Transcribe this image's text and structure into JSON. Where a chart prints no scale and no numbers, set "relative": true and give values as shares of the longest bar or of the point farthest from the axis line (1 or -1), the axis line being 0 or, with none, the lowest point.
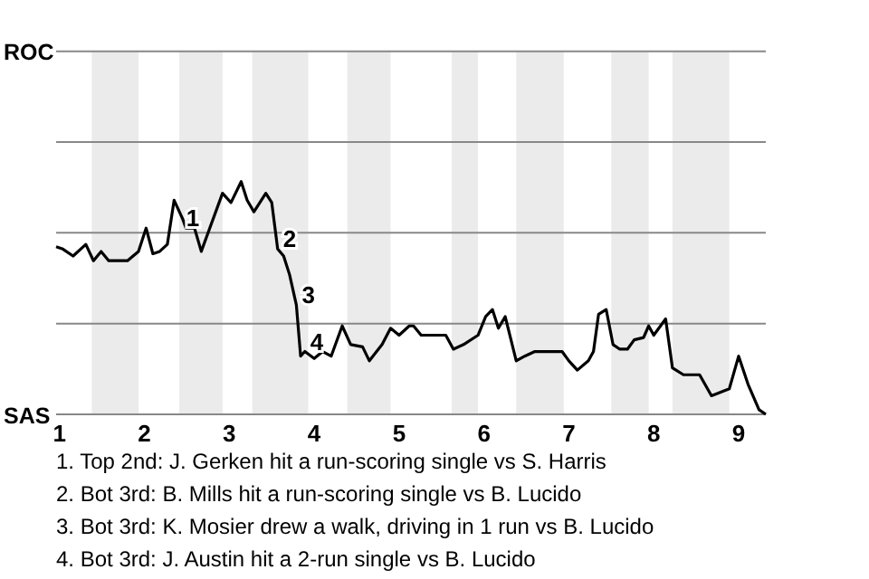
{
  "chart_data": {
    "type": "line",
    "relative": true,
    "x": [
      0.96,
      1.04,
      1.16,
      1.31,
      1.4,
      1.49,
      1.58,
      1.8,
      1.93,
      2.02,
      2.1,
      2.18,
      2.27,
      2.35,
      2.45,
      2.49,
      2.59,
      2.67,
      2.92,
      3.02,
      3.14,
      3.21,
      3.29,
      3.43,
      3.5,
      3.57,
      3.64,
      3.71,
      3.79,
      3.84,
      3.89,
      4.0,
      4.1,
      4.2,
      4.33,
      4.43,
      4.57,
      4.65,
      4.8,
      4.9,
      5.0,
      5.12,
      5.17,
      5.26,
      5.55,
      5.64,
      5.76,
      5.93,
      6.02,
      6.1,
      6.17,
      6.25,
      6.38,
      6.48,
      6.6,
      6.92,
      7.0,
      7.1,
      7.23,
      7.29,
      7.35,
      7.44,
      7.52,
      7.6,
      7.69,
      7.77,
      7.88,
      7.94,
      8.0,
      8.14,
      8.22,
      8.35,
      8.54,
      8.68,
      8.89,
      9.0,
      9.11,
      9.24,
      9.32
    ],
    "series": [
      {
        "color": "#000000",
        "values": [
          0.72,
          0.71,
          0.68,
          0.73,
          0.66,
          0.7,
          0.66,
          0.66,
          0.7,
          0.8,
          0.69,
          0.7,
          0.73,
          0.92,
          0.84,
          0.8,
          0.8,
          0.7,
          0.95,
          0.91,
          1,
          0.92,
          0.87,
          0.95,
          0.91,
          0.71,
          0.68,
          0.6,
          0.47,
          0.25,
          0.27,
          0.24,
          0.27,
          0.25,
          0.38,
          0.3,
          0.29,
          0.23,
          0.3,
          0.37,
          0.34,
          0.38,
          0.38,
          0.34,
          0.34,
          0.28,
          0.3,
          0.34,
          0.42,
          0.45,
          0.37,
          0.42,
          0.23,
          0.25,
          0.27,
          0.27,
          0.23,
          0.19,
          0.23,
          0.27,
          0.43,
          0.45,
          0.3,
          0.28,
          0.28,
          0.32,
          0.33,
          0.38,
          0.34,
          0.41,
          0.2,
          0.17,
          0.17,
          0.08,
          0.11,
          0.25,
          0.13,
          0.02,
          0
        ]
      }
    ],
    "xlim": [
      0.96,
      9.32
    ],
    "xticks": [
      1,
      2,
      3,
      4,
      5,
      6,
      7,
      8,
      9
    ],
    "marker": "none",
    "line_style": "solid",
    "ref_lines": [
      {
        "axis": "y",
        "value": 0.39,
        "color": "#888888"
      },
      {
        "axis": "y",
        "value": 0.78,
        "color": "#888888"
      },
      {
        "axis": "y",
        "value": 1.17,
        "color": "#888888"
      },
      {
        "axis": "y",
        "value": 1.56,
        "color": "#888888"
      }
    ],
    "bands": [
      {
        "axis": "x",
        "from": 1.38,
        "to": 1.93,
        "color": "#ebebeb"
      },
      {
        "axis": "x",
        "from": 2.41,
        "to": 2.92,
        "color": "#ebebeb"
      },
      {
        "axis": "x",
        "from": 3.27,
        "to": 3.93,
        "color": "#ebebeb"
      },
      {
        "axis": "x",
        "from": 4.39,
        "to": 4.9,
        "color": "#ebebeb"
      },
      {
        "axis": "x",
        "from": 5.62,
        "to": 5.93,
        "color": "#ebebeb"
      },
      {
        "axis": "x",
        "from": 6.38,
        "to": 6.94,
        "color": "#ebebeb"
      },
      {
        "axis": "x",
        "from": 7.5,
        "to": 7.94,
        "color": "#ebebeb"
      },
      {
        "axis": "x",
        "from": 8.22,
        "to": 8.89,
        "color": "#ebebeb"
      }
    ],
    "annotations": [
      "ROC",
      "SAS",
      {
        "text": "1",
        "x": 2.43,
        "y": 0.8
      },
      {
        "text": "2",
        "x": 3.57,
        "y": 0.71
      },
      {
        "text": "3",
        "x": 3.79,
        "y": 0.47
      },
      {
        "text": "4",
        "x": 3.89,
        "y": 0.27
      },
      "1. Top 2nd: J. Gerken hit a run-scoring single vs S. Harris",
      "2. Bot 3rd: B. Mills hit a run-scoring single vs B. Lucido",
      "3. Bot 3rd: K. Mosier drew a walk, driving in 1 run vs B. Lucido",
      "4. Bot 3rd: J. Austin hit a 2-run single vs B. Lucido"
    ]
  }
}
